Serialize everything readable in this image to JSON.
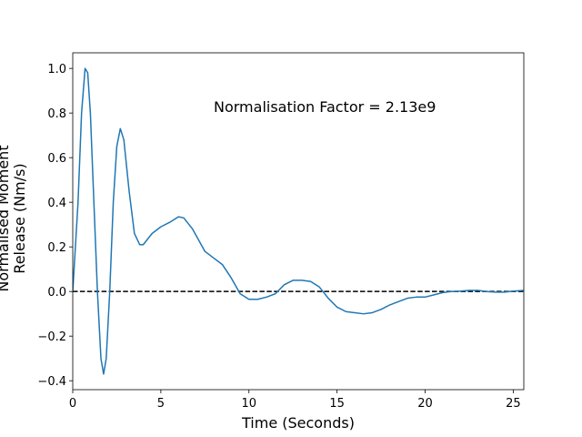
{
  "chart_data": {
    "type": "line",
    "annotation": "Normalisation Factor = 2.13e9",
    "xlabel": "Time (Seconds)",
    "ylabel": [
      "Normalised Moment",
      "Release (Nm/s)"
    ],
    "color": "#1f77b4",
    "reference_line": 0,
    "x": [
      0,
      0.3,
      0.5,
      0.7,
      0.85,
      1.0,
      1.2,
      1.4,
      1.6,
      1.75,
      1.9,
      2.1,
      2.3,
      2.5,
      2.7,
      2.9,
      3.2,
      3.5,
      3.8,
      4.0,
      4.5,
      5,
      5.5,
      6,
      6.3,
      6.8,
      7.5,
      8,
      8.5,
      9,
      9.5,
      10,
      10.5,
      11,
      11.5,
      12,
      12.5,
      13,
      13.5,
      14,
      14.5,
      15,
      15.5,
      16,
      16.5,
      17,
      17.5,
      18,
      18.5,
      19,
      19.5,
      20,
      20.5,
      21,
      21.5,
      22,
      22.5,
      23,
      23.5,
      24,
      24.5,
      25,
      25.6
    ],
    "values": [
      0.0,
      0.4,
      0.8,
      1.0,
      0.98,
      0.8,
      0.4,
      0.0,
      -0.3,
      -0.37,
      -0.3,
      0.0,
      0.4,
      0.65,
      0.73,
      0.68,
      0.45,
      0.26,
      0.21,
      0.21,
      0.26,
      0.29,
      0.31,
      0.335,
      0.33,
      0.28,
      0.18,
      0.15,
      0.12,
      0.06,
      -0.01,
      -0.035,
      -0.035,
      -0.025,
      -0.01,
      0.03,
      0.05,
      0.05,
      0.045,
      0.02,
      -0.03,
      -0.07,
      -0.09,
      -0.095,
      -0.1,
      -0.095,
      -0.08,
      -0.06,
      -0.045,
      -0.03,
      -0.025,
      -0.025,
      -0.015,
      -0.005,
      0.0,
      0.002,
      0.005,
      0.005,
      0.0,
      -0.003,
      -0.003,
      0.002,
      0.005
    ],
    "xlim": [
      0,
      25.6
    ],
    "ylim": [
      -0.44,
      1.07
    ],
    "xticks": [
      0,
      5,
      10,
      15,
      20,
      25
    ],
    "yticks": [
      {
        "value": -0.4,
        "label": "−0.4"
      },
      {
        "value": -0.2,
        "label": "−0.2"
      },
      {
        "value": 0,
        "label": "0.0"
      },
      {
        "value": 0.2,
        "label": "0.2"
      },
      {
        "value": 0.4,
        "label": "0.4"
      },
      {
        "value": 0.6,
        "label": "0.6"
      },
      {
        "value": 0.8,
        "label": "0.8"
      },
      {
        "value": 1.0,
        "label": "1.0"
      }
    ]
  }
}
